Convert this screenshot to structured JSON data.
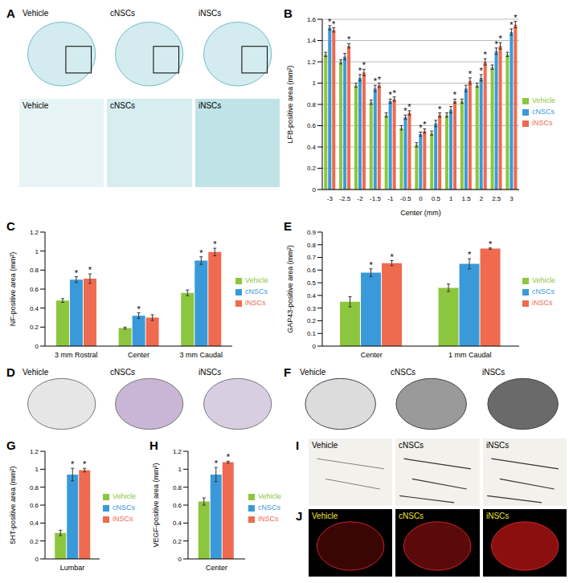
{
  "chart_data": [
    {
      "panel": "B",
      "type": "bar",
      "y_label": "LFB-positive area (mm²)",
      "x_label": "Center (mm)",
      "categories": [
        "-3",
        "-2.5",
        "-2",
        "-1.5",
        "-1",
        "-0.5",
        "0",
        "0.5",
        "1",
        "1.5",
        "2",
        "2.5",
        "3"
      ],
      "series": [
        {
          "name": "Vehicle",
          "color": "#8cc63e",
          "values": [
            1.27,
            1.2,
            0.98,
            0.82,
            0.7,
            0.58,
            0.42,
            0.53,
            0.7,
            0.83,
            0.98,
            1.15,
            1.27
          ],
          "errors": [
            0.02,
            0.02,
            0.02,
            0.02,
            0.02,
            0.02,
            0.02,
            0.02,
            0.02,
            0.02,
            0.02,
            0.02,
            0.02
          ],
          "significance": [
            null,
            null,
            null,
            null,
            null,
            null,
            null,
            null,
            null,
            null,
            null,
            null,
            null
          ]
        },
        {
          "name": "cNSCs",
          "color": "#3a9ad9",
          "values": [
            1.52,
            1.25,
            1.05,
            0.95,
            0.83,
            0.68,
            0.52,
            0.62,
            0.75,
            0.95,
            1.05,
            1.3,
            1.48
          ],
          "errors": [
            0.02,
            0.03,
            0.03,
            0.03,
            0.02,
            0.02,
            0.02,
            0.03,
            0.03,
            0.03,
            0.03,
            0.03,
            0.03
          ],
          "significance": [
            "*",
            null,
            "*",
            "*",
            "*",
            "*",
            "*",
            null,
            null,
            null,
            "*",
            "*",
            "*"
          ]
        },
        {
          "name": "iNSCs",
          "color": "#ef6a4f",
          "values": [
            1.5,
            1.35,
            1.1,
            0.98,
            0.85,
            0.72,
            0.55,
            0.7,
            0.83,
            1.02,
            1.2,
            1.35,
            1.55
          ],
          "errors": [
            0.02,
            0.02,
            0.03,
            0.02,
            0.02,
            0.02,
            0.02,
            0.02,
            0.02,
            0.03,
            0.03,
            0.03,
            0.03
          ],
          "significance": [
            "*",
            "*",
            "*",
            "*",
            "*",
            "*",
            "*",
            "*",
            "*",
            "*",
            "*",
            "*",
            "*"
          ]
        }
      ],
      "ylim": [
        0,
        1.6
      ],
      "yticks": [
        0,
        0.2,
        0.4,
        0.6,
        0.8,
        1,
        1.2,
        1.4,
        1.6
      ],
      "grid": true,
      "legend": "right"
    },
    {
      "panel": "C",
      "type": "bar",
      "y_label": "NF-positive area (mm²)",
      "categories": [
        "3 mm Rostral",
        "Center",
        "3 mm Caudal"
      ],
      "series": [
        {
          "name": "Vehicle",
          "color": "#8cc63e",
          "values": [
            0.48,
            0.19,
            0.56
          ],
          "errors": [
            0.02,
            0.01,
            0.03
          ],
          "significance": [
            null,
            null,
            null
          ]
        },
        {
          "name": "cNSCs",
          "color": "#3a9ad9",
          "values": [
            0.7,
            0.32,
            0.9
          ],
          "errors": [
            0.03,
            0.03,
            0.04
          ],
          "significance": [
            "*",
            "*",
            "*"
          ]
        },
        {
          "name": "iNSCs",
          "color": "#ef6a4f",
          "values": [
            0.71,
            0.3,
            0.99
          ],
          "errors": [
            0.05,
            0.03,
            0.04
          ],
          "significance": [
            "*",
            null,
            "*"
          ]
        }
      ],
      "ylim": [
        0,
        1.2
      ],
      "yticks": [
        0,
        0.2,
        0.4,
        0.6,
        0.8,
        1,
        1.2
      ],
      "grid": false,
      "legend": "right"
    },
    {
      "panel": "E",
      "type": "bar",
      "y_label": "GAP43-positive area (mm²)",
      "categories": [
        "Center",
        "1 mm Caudal"
      ],
      "series": [
        {
          "name": "Vehicle",
          "color": "#8cc63e",
          "values": [
            0.35,
            0.46
          ],
          "errors": [
            0.04,
            0.03
          ],
          "significance": [
            null,
            null
          ]
        },
        {
          "name": "cNSCs",
          "color": "#3a9ad9",
          "values": [
            0.58,
            0.65
          ],
          "errors": [
            0.03,
            0.04
          ],
          "significance": [
            "*",
            "*"
          ]
        },
        {
          "name": "iNSCs",
          "color": "#ef6a4f",
          "values": [
            0.655,
            0.77
          ],
          "errors": [
            0.02,
            0.005
          ],
          "significance": [
            "*",
            "*"
          ]
        }
      ],
      "ylim": [
        0,
        0.9
      ],
      "yticks": [
        0,
        0.1,
        0.2,
        0.3,
        0.4,
        0.5,
        0.6,
        0.7,
        0.8,
        0.9
      ],
      "grid": false,
      "legend": "right"
    },
    {
      "panel": "G",
      "type": "bar",
      "y_label": "5HT-positive area (mm²)",
      "categories": [
        "Lumbar"
      ],
      "series": [
        {
          "name": "Vehicle",
          "color": "#8cc63e",
          "values": [
            0.29
          ],
          "errors": [
            0.03
          ],
          "significance": [
            null
          ]
        },
        {
          "name": "cNSCs",
          "color": "#3a9ad9",
          "values": [
            0.94
          ],
          "errors": [
            0.07
          ],
          "significance": [
            "*"
          ]
        },
        {
          "name": "iNSCs",
          "color": "#ef6a4f",
          "values": [
            0.99
          ],
          "errors": [
            0.02
          ],
          "significance": [
            "*"
          ]
        }
      ],
      "ylim": [
        0,
        1.2
      ],
      "yticks": [
        0,
        0.2,
        0.4,
        0.6,
        0.8,
        1,
        1.2
      ],
      "grid": false,
      "legend": "right"
    },
    {
      "panel": "H",
      "type": "bar",
      "y_label": "VEGF-positive area (mm²)",
      "categories": [
        "Center"
      ],
      "series": [
        {
          "name": "Vehicle",
          "color": "#8cc63e",
          "values": [
            0.64
          ],
          "errors": [
            0.04
          ],
          "significance": [
            null
          ]
        },
        {
          "name": "cNSCs",
          "color": "#3a9ad9",
          "values": [
            0.94
          ],
          "errors": [
            0.08
          ],
          "significance": [
            "*"
          ]
        },
        {
          "name": "iNSCs",
          "color": "#ef6a4f",
          "values": [
            1.08
          ],
          "errors": [
            0.01
          ],
          "significance": [
            "*"
          ]
        }
      ],
      "ylim": [
        0,
        1.2
      ],
      "yticks": [
        0,
        0.2,
        0.4,
        0.6,
        0.8,
        1,
        1.2
      ],
      "grid": false,
      "legend": "right"
    }
  ],
  "images": [
    {
      "panel": "A",
      "labels": [
        [
          "Vehicle",
          "cNSCs",
          "iNSCs"
        ],
        [
          "Vehicle",
          "cNSCs",
          "iNSCs"
        ]
      ]
    },
    {
      "panel": "D",
      "labels": [
        [
          "Vehicle",
          "cNSCs",
          "iNSCs"
        ]
      ]
    },
    {
      "panel": "F",
      "labels": [
        [
          "Vehicle",
          "cNSCs",
          "iNSCs"
        ]
      ]
    },
    {
      "panel": "I",
      "labels": [
        [
          "Vehicle",
          "cNSCs",
          "iNSCs"
        ]
      ]
    },
    {
      "panel": "J",
      "labels": [
        [
          "Vehicle",
          "cNSCs",
          "iNSCs"
        ]
      ]
    }
  ]
}
